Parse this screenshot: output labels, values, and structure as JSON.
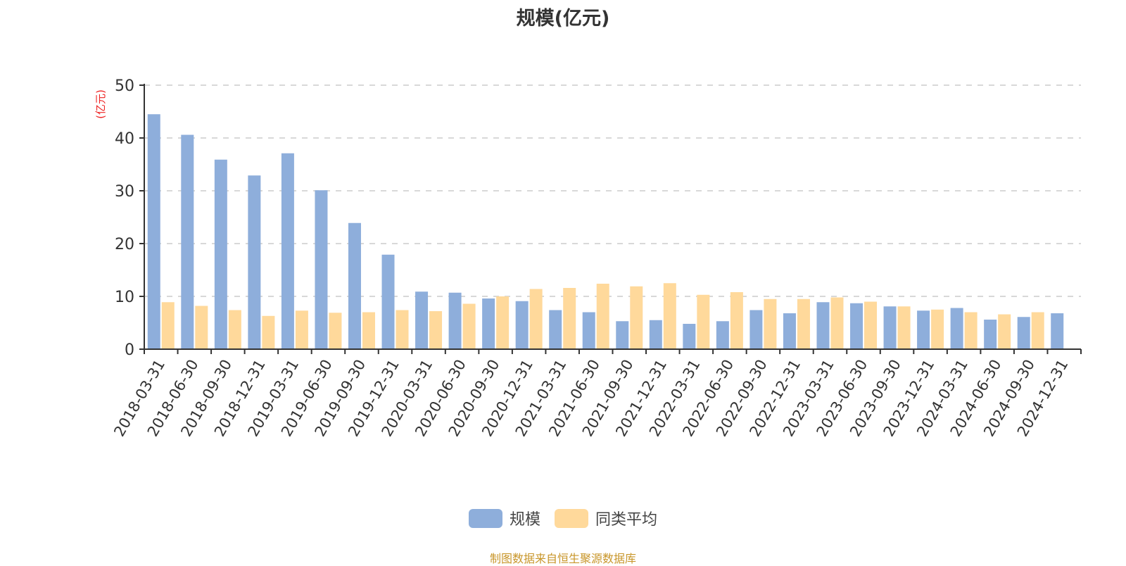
{
  "title": "规模(亿元)",
  "y_unit_label": "(亿元)",
  "footer": "制图数据来自恒生聚源数据库",
  "colors": {
    "series_scale": "#8eaedb",
    "series_peer_avg": "#ffd99b",
    "axis": "#333333",
    "grid": "#cccccc",
    "unit_label": "#ee2222",
    "footer": "#c8962a"
  },
  "legend": [
    {
      "label": "规模",
      "color": "#8eaedb"
    },
    {
      "label": "同类平均",
      "color": "#ffd99b"
    }
  ],
  "chart_data": {
    "type": "bar",
    "title": "规模(亿元)",
    "xlabel": "",
    "ylabel": "(亿元)",
    "ylim": [
      0,
      50
    ],
    "yticks": [
      0,
      10,
      20,
      30,
      40,
      50
    ],
    "grid": true,
    "legend_position": "bottom",
    "categories": [
      "2018-03-31",
      "2018-06-30",
      "2018-09-30",
      "2018-12-31",
      "2019-03-31",
      "2019-06-30",
      "2019-09-30",
      "2019-12-31",
      "2020-03-31",
      "2020-06-30",
      "2020-09-30",
      "2020-12-31",
      "2021-03-31",
      "2021-06-30",
      "2021-09-30",
      "2021-12-31",
      "2022-03-31",
      "2022-06-30",
      "2022-09-30",
      "2022-12-31",
      "2023-03-31",
      "2023-06-30",
      "2023-09-30",
      "2023-12-31",
      "2024-03-31",
      "2024-06-30",
      "2024-09-30",
      "2024-12-31"
    ],
    "series": [
      {
        "name": "规模",
        "values": [
          44.5,
          40.6,
          35.9,
          32.9,
          37.1,
          30.1,
          23.9,
          17.9,
          10.9,
          10.7,
          9.6,
          9.1,
          7.4,
          7.0,
          5.3,
          5.5,
          4.8,
          5.3,
          7.4,
          6.8,
          8.9,
          8.7,
          8.1,
          7.3,
          7.8,
          5.6,
          6.1,
          6.8
        ]
      },
      {
        "name": "同类平均",
        "values": [
          8.9,
          8.2,
          7.4,
          6.3,
          7.3,
          6.9,
          7.0,
          7.4,
          7.2,
          8.6,
          10.0,
          11.4,
          11.6,
          12.4,
          11.9,
          12.5,
          10.3,
          10.8,
          9.5,
          9.5,
          9.8,
          9.0,
          8.1,
          7.5,
          7.0,
          6.6,
          7.0,
          null
        ]
      }
    ]
  }
}
